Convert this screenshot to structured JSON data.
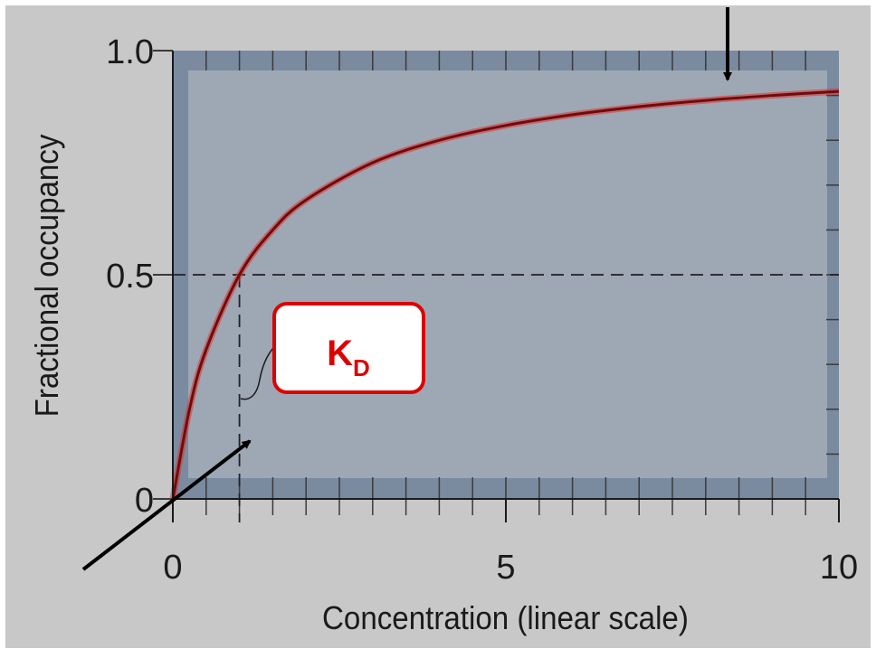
{
  "chart_data": {
    "type": "line",
    "xlabel": "Concentration (linear scale)",
    "ylabel": "Fractional occupancy",
    "xlim": [
      0,
      10
    ],
    "ylim": [
      0,
      1
    ],
    "x_tick_labels": [
      "0",
      "5",
      "10"
    ],
    "y_tick_labels": [
      "0",
      "0.5",
      "1.0"
    ],
    "series": [
      {
        "x": [
          0,
          0.25,
          0.5,
          1,
          1.5,
          2,
          3,
          4,
          5,
          6,
          7,
          8,
          9,
          10
        ],
        "y": [
          0,
          0.2,
          0.333,
          0.5,
          0.6,
          0.667,
          0.75,
          0.8,
          0.833,
          0.857,
          0.875,
          0.889,
          0.9,
          0.909
        ]
      }
    ],
    "kd_marker": {
      "x": 1,
      "y": 0.5,
      "label_main": "K",
      "label_sub": "D"
    },
    "colors": {
      "curve": "#8b1010",
      "curve_glow": "#e03030",
      "plot_bg": "#9ea8b4",
      "plot_frame": "#7a8ba0",
      "outer_bg": "#c8c8c8",
      "kd_label": "#dd0000"
    }
  }
}
